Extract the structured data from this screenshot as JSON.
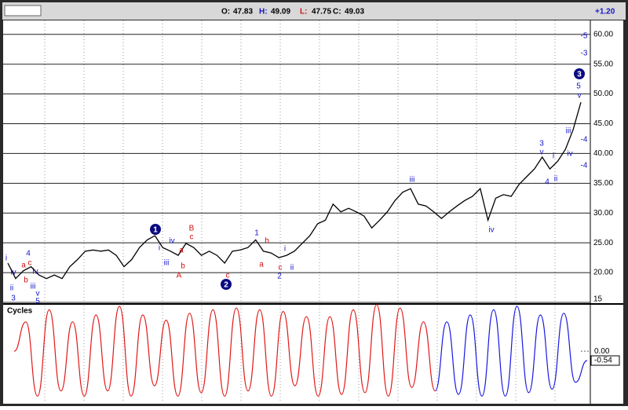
{
  "chart_data": [
    {
      "type": "line",
      "ohlc": [
        {
          "label": "O:",
          "value": 47.83,
          "color": "#000000"
        },
        {
          "label": "H:",
          "value": 49.09,
          "color": "#1515c8"
        },
        {
          "label": "L:",
          "value": 47.75,
          "color": "#d01010"
        },
        {
          "label": "C:",
          "value": 49.03,
          "color": "#000000"
        }
      ],
      "change": {
        "value": 1.2,
        "label": "+1.20"
      },
      "series": [
        {
          "color": "#000000",
          "values": [
            21.6,
            19,
            20.3,
            21,
            19.6,
            19,
            19.6,
            19,
            21,
            22.2,
            23.6,
            23.8,
            23.6,
            23.8,
            22.9,
            21,
            22.2,
            24.2,
            25.5,
            26.2,
            24.2,
            23.6,
            22.9,
            24.9,
            24.2,
            22.9,
            23.6,
            22.9,
            21.6,
            23.6,
            23.8,
            24.2,
            25.5,
            23.6,
            23.3,
            22.5,
            22.9,
            23.6,
            24.9,
            26.2,
            28.2,
            28.8,
            31.5,
            30.2,
            30.8,
            30.2,
            29.5,
            27.5,
            28.8,
            30.2,
            32.1,
            33.5,
            34.1,
            31.5,
            31.2,
            30.2,
            29.1,
            30.2,
            31.2,
            32.1,
            32.8,
            34.1,
            28.8,
            32.5,
            33.1,
            32.8,
            34.8,
            36.1,
            37.4,
            39.4,
            37.4,
            38.7,
            40.7,
            44,
            48.6
          ]
        }
      ],
      "ylim": [
        15,
        63.4
      ],
      "yticks": [
        15,
        {
          "value": 20,
          "label": "20.00"
        },
        {
          "value": 25,
          "label": "25.00"
        },
        {
          "value": 30,
          "label": "30.00"
        },
        {
          "value": 35,
          "label": "35.00"
        },
        {
          "value": 40,
          "label": "40.00"
        },
        {
          "value": 45,
          "label": "45.00"
        },
        {
          "value": 50,
          "label": "50.00"
        },
        {
          "value": 55,
          "label": "55.00"
        },
        {
          "value": 60,
          "label": "60.00"
        }
      ],
      "grid": true,
      "annotations": [
        {
          "text": "i",
          "color": "#1515c8"
        },
        {
          "text": "iv",
          "color": "#1515c8"
        },
        {
          "text": "4",
          "color": "#1515c8"
        },
        {
          "text": "a",
          "color": "#d01010"
        },
        {
          "text": "c",
          "color": "#d01010"
        },
        {
          "text": "b",
          "color": "#d01010"
        },
        {
          "text": "iv",
          "color": "#1515c8"
        },
        {
          "text": "ii",
          "color": "#1515c8"
        },
        {
          "text": "iii",
          "color": "#1515c8"
        },
        {
          "text": "3",
          "color": "#1515c8"
        },
        {
          "text": "v",
          "color": "#1515c8"
        },
        {
          "text": "5",
          "color": "#1515c8"
        },
        {
          "text": "1",
          "color": "#0a0a80",
          "circled": true
        },
        {
          "text": "i",
          "color": "#1515c8"
        },
        {
          "text": "iv",
          "color": "#1515c8"
        },
        {
          "text": "a",
          "color": "#d01010"
        },
        {
          "text": "iii",
          "color": "#1515c8"
        },
        {
          "text": "b",
          "color": "#d01010"
        },
        {
          "text": "A",
          "color": "#d01010"
        },
        {
          "text": "B",
          "color": "#d01010"
        },
        {
          "text": "c",
          "color": "#d01010"
        },
        {
          "text": "c",
          "color": "#d01010"
        },
        {
          "text": "2",
          "color": "#0a0a80",
          "circled": true
        },
        {
          "text": "1",
          "color": "#1515c8"
        },
        {
          "text": "b",
          "color": "#d01010"
        },
        {
          "text": "a",
          "color": "#d01010"
        },
        {
          "text": "i",
          "color": "#1515c8"
        },
        {
          "text": "c",
          "color": "#d01010"
        },
        {
          "text": "2",
          "color": "#1515c8"
        },
        {
          "text": "ii",
          "color": "#1515c8"
        },
        {
          "text": "iii",
          "color": "#1515c8"
        },
        {
          "text": "iv",
          "color": "#1515c8"
        },
        {
          "text": "3",
          "color": "#1515c8"
        },
        {
          "text": "v",
          "color": "#1515c8"
        },
        {
          "text": "i",
          "color": "#1515c8"
        },
        {
          "text": "4",
          "color": "#1515c8"
        },
        {
          "text": "ii",
          "color": "#1515c8"
        },
        {
          "text": "iii",
          "color": "#1515c8"
        },
        {
          "text": "iv",
          "color": "#1515c8"
        },
        {
          "text": "-4",
          "color": "#1515c8"
        },
        {
          "text": "-4",
          "color": "#1515c8"
        },
        {
          "text": "3",
          "color": "#0a0a80",
          "circled": true
        },
        {
          "text": "5",
          "color": "#1515c8"
        },
        {
          "text": "v",
          "color": "#1515c8"
        },
        {
          "text": "-5",
          "color": "#1515c8"
        },
        {
          "text": "-3",
          "color": "#1515c8"
        }
      ]
    },
    {
      "type": "line",
      "title": "Cycles",
      "series": [
        {
          "color": "#e01818",
          "values": [
            0,
            1.7,
            -2.6,
            2.4,
            -2.3,
            1.7,
            -2.6,
            2.1,
            -2.3,
            2.6,
            -2.6,
            2.1,
            -2.0,
            1.8,
            -2.6,
            2.2,
            -2.4,
            2.4,
            -2.6,
            2.5,
            -2.3,
            2.4,
            -2.6,
            2.3,
            -2.0,
            2.0,
            -2.6,
            2.0,
            -2.5,
            2.4,
            -2.4,
            2.7,
            -2.6,
            2.5,
            -2.1,
            1.7,
            -2.3
          ]
        },
        {
          "color": "#1818e0",
          "values": [
            1.7,
            -2.5,
            2.1,
            -2.6,
            2.4,
            -2.6,
            2.6,
            -2.4,
            2.1,
            -2.2,
            2.2,
            -1.8,
            -0.54
          ]
        }
      ],
      "ylim": [
        -2.95,
        2.6
      ],
      "yticks": [
        {
          "value": 0,
          "label": "0.00"
        }
      ]
    }
  ]
}
